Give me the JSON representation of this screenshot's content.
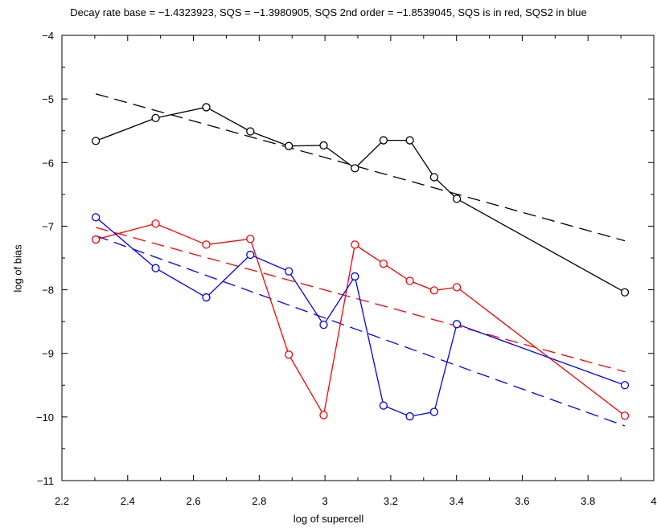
{
  "chart_data": {
    "type": "line",
    "title": "Decay rate base = −1.4323923, SQS = −1.3980905, SQS 2nd order = −1.8539045, SQS is in red, SQS2 in blue",
    "xlabel": "log of supercell",
    "ylabel": "log of bias",
    "xlim": [
      2.2,
      4.0
    ],
    "ylim": [
      -11,
      -4
    ],
    "xticks": [
      2.2,
      2.4,
      2.6,
      2.8,
      3.0,
      3.2,
      3.4,
      3.6,
      3.8,
      4.0
    ],
    "xtick_labels": [
      "2.2",
      "2.4",
      "2.6",
      "2.8",
      "3",
      "3.2",
      "3.4",
      "3.6",
      "3.8",
      "4"
    ],
    "yticks": [
      -4,
      -5,
      -6,
      -7,
      -8,
      -9,
      -10,
      -11
    ],
    "ytick_labels": [
      "−4",
      "−5",
      "−6",
      "−7",
      "−8",
      "−9",
      "−10",
      "−11"
    ],
    "grid": false,
    "series": [
      {
        "color": "#000000",
        "x": [
          2.303,
          2.485,
          2.639,
          2.773,
          2.89,
          2.996,
          3.091,
          3.178,
          3.258,
          3.332,
          3.401,
          3.912
        ],
        "values": [
          -5.66,
          -5.3,
          -5.13,
          -5.51,
          -5.74,
          -5.73,
          -6.09,
          -5.65,
          -5.65,
          -6.23,
          -6.57,
          -8.04
        ]
      },
      {
        "color": "#ff0000",
        "x": [
          2.303,
          2.485,
          2.639,
          2.773,
          2.89,
          2.996,
          3.091,
          3.178,
          3.258,
          3.332,
          3.401,
          3.912
        ],
        "values": [
          -7.21,
          -6.96,
          -7.29,
          -7.2,
          -9.02,
          -9.97,
          -7.29,
          -7.59,
          -7.86,
          -8.01,
          -7.96,
          -9.98
        ]
      },
      {
        "color": "#0000ff",
        "x": [
          2.303,
          2.485,
          2.639,
          2.773,
          2.89,
          2.996,
          3.091,
          3.178,
          3.258,
          3.332,
          3.401,
          3.912
        ],
        "values": [
          -6.86,
          -7.66,
          -8.12,
          -7.45,
          -7.71,
          -8.55,
          -7.79,
          -9.82,
          -9.99,
          -9.92,
          -8.54,
          -9.5
        ]
      }
    ],
    "fit_lines": [
      {
        "color": "#000000",
        "x": [
          2.303,
          3.912
        ],
        "values": [
          -4.92,
          -7.23
        ]
      },
      {
        "color": "#ff0000",
        "x": [
          2.303,
          3.912
        ],
        "values": [
          -7.02,
          -9.29
        ]
      },
      {
        "color": "#0000ff",
        "x": [
          2.303,
          3.912
        ],
        "values": [
          -7.15,
          -10.14
        ]
      }
    ]
  }
}
